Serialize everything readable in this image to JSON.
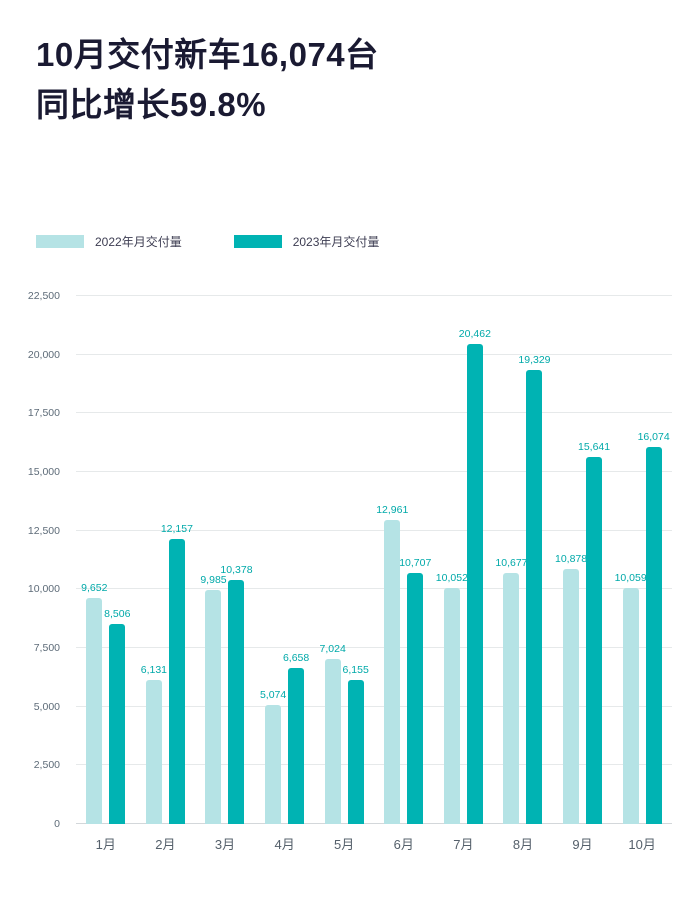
{
  "title": {
    "line1_prefix": "10月交付新车",
    "line1_bold": "16,074",
    "line1_suffix": "台",
    "line2_prefix": "同比增长",
    "line2_bold": "59.8%"
  },
  "colors": {
    "series_2022": "#b5e3e5",
    "series_2023": "#00b3b3",
    "value_label": "#00a9a9",
    "title_text": "#1a1a32",
    "gridline": "#e6e9ea"
  },
  "legend": [
    {
      "label": "2022年月交付量",
      "color": "#b5e3e5"
    },
    {
      "label": "2023年月交付量",
      "color": "#00b3b3"
    }
  ],
  "chart_data": {
    "type": "bar",
    "categories": [
      "1月",
      "2月",
      "3月",
      "4月",
      "5月",
      "6月",
      "7月",
      "8月",
      "9月",
      "10月"
    ],
    "series": [
      {
        "name": "2022年月交付量",
        "color": "#b5e3e5",
        "values": [
          9652,
          6131,
          9985,
          5074,
          7024,
          12961,
          10052,
          10677,
          10878,
          10059
        ]
      },
      {
        "name": "2023年月交付量",
        "color": "#00b3b3",
        "values": [
          8506,
          12157,
          10378,
          6658,
          6155,
          10707,
          20462,
          19329,
          15641,
          16074
        ]
      }
    ],
    "title": "10月交付新车16,074台 同比增长59.8%",
    "xlabel": "",
    "ylabel": "",
    "ylim": [
      0,
      22500
    ],
    "ytick_step": 2500,
    "yticks": [
      "0",
      "2,500",
      "5,000",
      "7,500",
      "10,000",
      "12,500",
      "15,000",
      "17,500",
      "20,000",
      "22,500"
    ],
    "grid": true,
    "legend_position": "top-left"
  }
}
